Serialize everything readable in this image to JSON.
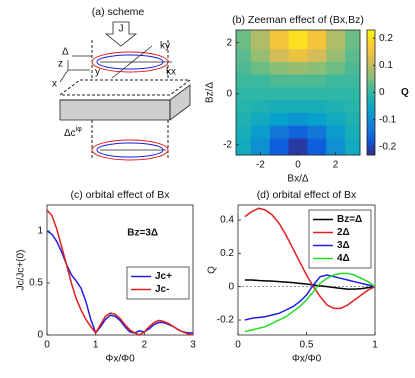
{
  "scheme": {
    "title": "(a) scheme",
    "labels": {
      "j": "J",
      "delta": "Δ",
      "ky": "ky",
      "kx": "kx",
      "z": "z",
      "y": "y",
      "x": "x",
      "delta_c": "Δc",
      "phase": "iφ"
    }
  },
  "chart_data": [
    {
      "type": "heatmap",
      "title": "(b) Zeeman effect of (Bx,Bz)",
      "x_label": "Bx/Δ",
      "y_label": "Bz/Δ",
      "x": [
        -3,
        -2,
        -1,
        0,
        1,
        2,
        3
      ],
      "y": [
        2,
        1.5,
        1,
        0.5,
        0,
        -0.5,
        -1,
        -1.5,
        -2
      ],
      "z": [
        [
          0.04,
          0.09,
          0.16,
          0.2,
          0.16,
          0.09,
          0.04
        ],
        [
          0.03,
          0.07,
          0.12,
          0.15,
          0.12,
          0.07,
          0.03
        ],
        [
          0.02,
          0.04,
          0.06,
          0.07,
          0.06,
          0.04,
          0.02
        ],
        [
          0.01,
          0.01,
          0.02,
          0.02,
          0.02,
          0.01,
          0.01
        ],
        [
          0,
          0,
          0,
          0,
          0,
          0,
          0
        ],
        [
          -0.01,
          -0.02,
          -0.03,
          -0.03,
          -0.03,
          -0.02,
          -0.01
        ],
        [
          -0.02,
          -0.04,
          -0.06,
          -0.08,
          -0.06,
          -0.04,
          -0.02
        ],
        [
          -0.03,
          -0.07,
          -0.13,
          -0.16,
          -0.13,
          -0.07,
          -0.03
        ],
        [
          -0.04,
          -0.09,
          -0.17,
          -0.21,
          -0.17,
          -0.09,
          -0.04
        ]
      ],
      "xlim": [
        -3.3,
        3.3
      ],
      "ylim": [
        -2.4,
        2.5
      ],
      "xticks": [
        -2,
        0,
        2
      ],
      "yticks": [
        -2,
        0,
        2
      ],
      "clim": [
        -0.23,
        0.23
      ],
      "cbar_ticks": [
        -0.2,
        -0.1,
        0,
        0.1,
        0.2
      ],
      "colorbar_label": "Q",
      "colors": [
        "#352a87",
        "#0f5cdd",
        "#1481d6",
        "#06a4ca",
        "#2eb7a4",
        "#87bf77",
        "#d1bb59",
        "#fec832",
        "#f9fb0e"
      ]
    },
    {
      "type": "line",
      "title": "(c) orbital effect of Bx",
      "x_label": "Φx/Φ0",
      "y_label": "Jc/Jc+(0)",
      "annotation": "Bz=3Δ",
      "x": [
        0,
        0.1,
        0.2,
        0.3,
        0.4,
        0.5,
        0.6,
        0.7,
        0.8,
        0.9,
        1,
        1.1,
        1.2,
        1.3,
        1.4,
        1.5,
        1.6,
        1.7,
        1.8,
        1.9,
        2,
        2.1,
        2.2,
        2.3,
        2.4,
        2.5,
        2.6,
        2.7,
        2.8,
        2.9,
        3
      ],
      "series": [
        {
          "name": "Jc+",
          "color": "#1f1fe0",
          "values": [
            1.0,
            0.97,
            0.9,
            0.8,
            0.68,
            0.58,
            0.52,
            0.45,
            0.32,
            0.15,
            0.02,
            0.08,
            0.15,
            0.19,
            0.18,
            0.14,
            0.08,
            0.03,
            0.02,
            0.04,
            0.03,
            0.06,
            0.1,
            0.12,
            0.12,
            0.1,
            0.08,
            0.05,
            0.03,
            0.02,
            0.02
          ]
        },
        {
          "name": "Jc-",
          "color": "#e01f1f",
          "values": [
            1.2,
            1.15,
            1.02,
            0.85,
            0.68,
            0.5,
            0.35,
            0.24,
            0.15,
            0.08,
            0.02,
            0.1,
            0.18,
            0.21,
            0.2,
            0.16,
            0.1,
            0.05,
            0.02,
            0.0,
            0.03,
            0.08,
            0.12,
            0.14,
            0.13,
            0.11,
            0.08,
            0.05,
            0.03,
            0.01,
            0.0
          ]
        }
      ],
      "xlim": [
        0,
        3
      ],
      "ylim": [
        0,
        1.25
      ],
      "xticks": [
        0,
        1,
        2,
        3
      ],
      "yticks": [
        0,
        0.5,
        1
      ],
      "legend": "center right"
    },
    {
      "type": "line",
      "title": "(d) orbital effect of Bx",
      "x_label": "Φx/Φ0",
      "y_label": "Q",
      "x": [
        0.05,
        0.1,
        0.15,
        0.2,
        0.25,
        0.3,
        0.35,
        0.4,
        0.45,
        0.5,
        0.55,
        0.6,
        0.65,
        0.7,
        0.75,
        0.8,
        0.85,
        0.9,
        0.95,
        1
      ],
      "series": [
        {
          "name": "Bz=Δ",
          "color": "#000000",
          "values": [
            0.04,
            0.04,
            0.037,
            0.035,
            0.033,
            0.03,
            0.027,
            0.024,
            0.02,
            0.016,
            0.01,
            0.005,
            0,
            -0.005,
            -0.01,
            -0.015,
            -0.015,
            -0.012,
            -0.006,
            0
          ]
        },
        {
          "name": "2Δ",
          "color": "#e01f1f",
          "values": [
            0.42,
            0.45,
            0.47,
            0.46,
            0.43,
            0.38,
            0.31,
            0.23,
            0.15,
            0.07,
            0.0,
            -0.06,
            -0.11,
            -0.13,
            -0.13,
            -0.11,
            -0.08,
            -0.05,
            -0.02,
            0
          ]
        },
        {
          "name": "3Δ",
          "color": "#1f1fe0",
          "values": [
            -0.2,
            -0.19,
            -0.185,
            -0.18,
            -0.17,
            -0.16,
            -0.14,
            -0.12,
            -0.09,
            -0.05,
            0.01,
            0.06,
            0.07,
            0.06,
            0.05,
            0.04,
            0.03,
            0.02,
            0.01,
            0
          ]
        },
        {
          "name": "4Δ",
          "color": "#22dd22",
          "values": [
            -0.27,
            -0.26,
            -0.25,
            -0.24,
            -0.22,
            -0.2,
            -0.18,
            -0.15,
            -0.12,
            -0.08,
            -0.03,
            0.02,
            0.05,
            0.07,
            0.08,
            0.08,
            0.07,
            0.05,
            0.03,
            0
          ]
        }
      ],
      "xlim": [
        0,
        1
      ],
      "ylim": [
        -0.29,
        0.49
      ],
      "xticks": [
        0,
        0.5,
        1
      ],
      "yticks": [
        -0.2,
        0,
        0.2,
        0.4
      ],
      "zero_line": true,
      "legend": "upper right"
    }
  ]
}
